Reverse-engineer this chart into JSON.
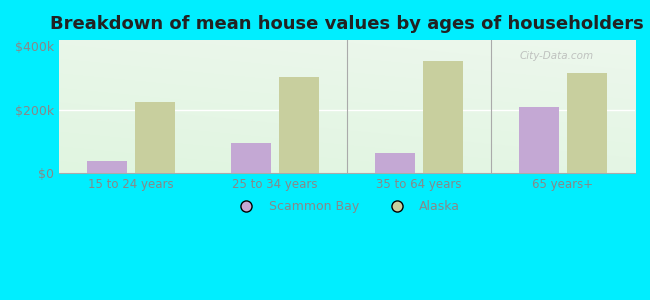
{
  "title": "Breakdown of mean house values by ages of householders",
  "categories": [
    "15 to 24 years",
    "25 to 34 years",
    "35 to 64 years",
    "65 years+"
  ],
  "scammon_bay": [
    40000,
    95000,
    65000,
    210000
  ],
  "alaska": [
    225000,
    305000,
    355000,
    315000
  ],
  "scammon_color": "#c4a8d4",
  "alaska_color": "#c8cf9e",
  "ylim": [
    0,
    420000
  ],
  "yticks": [
    0,
    200000,
    400000
  ],
  "ytick_labels": [
    "$0",
    "$200k",
    "$400k"
  ],
  "outer_background": "#00eeff",
  "title_fontsize": 13,
  "legend_labels": [
    "Scammon Bay",
    "Alaska"
  ],
  "bar_width": 0.28,
  "watermark": "City-Data.com"
}
